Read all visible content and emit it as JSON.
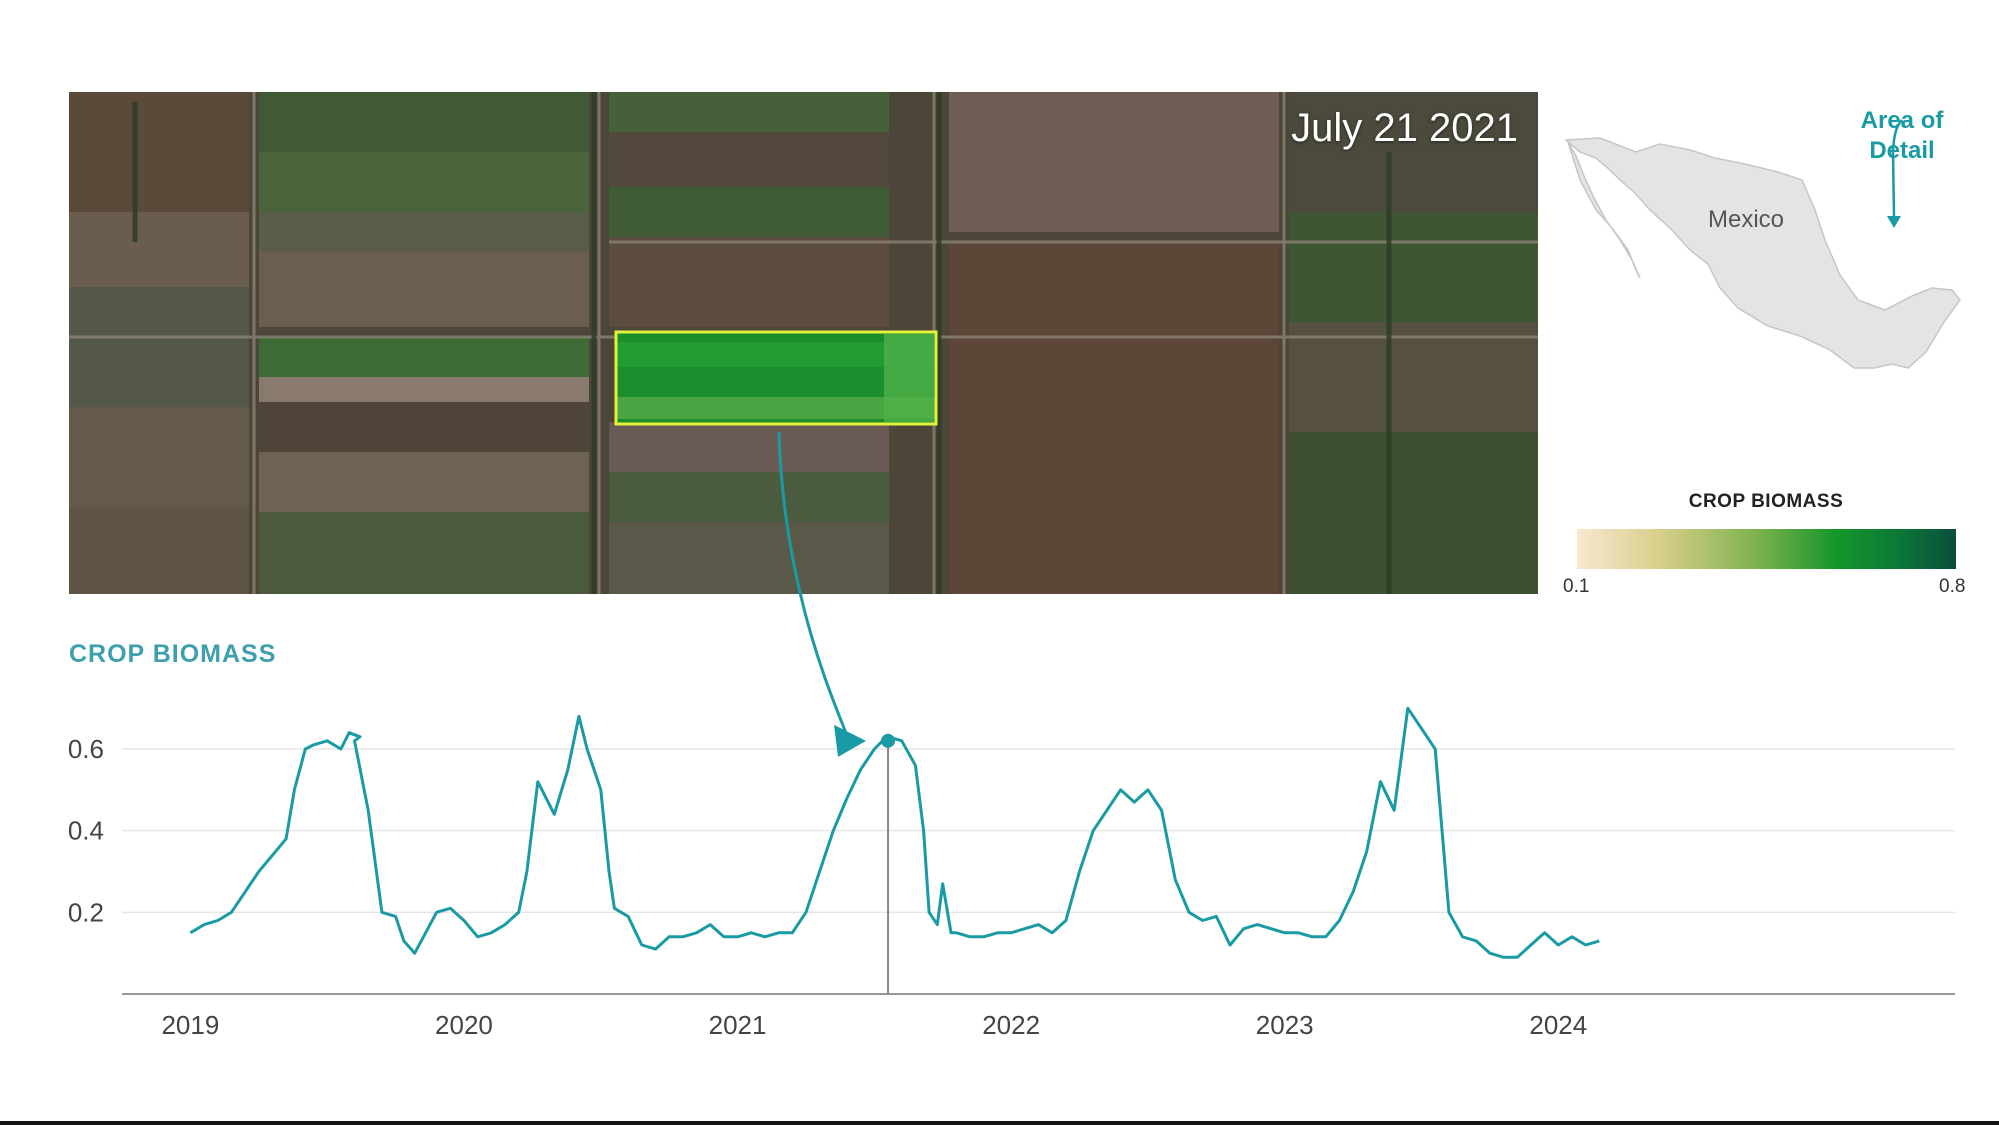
{
  "image_caption_date": "July 21 2021",
  "locator_map": {
    "country_label": "Mexico",
    "area_label_line1": "Area of",
    "area_label_line2": "Detail",
    "accent_color": "#1a9aa4"
  },
  "legend": {
    "title": "CROP BIOMASS",
    "min_label": "0.1",
    "max_label": "0.8",
    "colors": [
      "#f7e8d0",
      "#d8cf8a",
      "#7bb14e",
      "#16962a",
      "#0b7a36",
      "#0a4f3c"
    ]
  },
  "chart_data": {
    "type": "line",
    "title": "CROP BIOMASS",
    "xlabel": "",
    "ylabel": "",
    "xlim": [
      2018.75,
      2025.45
    ],
    "ylim": [
      0.0,
      0.72
    ],
    "xticks": [
      "2019",
      "2020",
      "2021",
      "2022",
      "2023",
      "2024"
    ],
    "yticks": [
      "0.2",
      "0.4",
      "0.6"
    ],
    "grid": true,
    "line_color": "#1a9aa4",
    "highlight": {
      "x": 2021.55,
      "y": 0.62,
      "label": "July 21 2021"
    },
    "series": [
      {
        "x": [
          2019.0,
          2019.05,
          2019.1,
          2019.15,
          2019.2,
          2019.25,
          2019.3,
          2019.35,
          2019.38,
          2019.42,
          2019.45,
          2019.5,
          2019.55,
          2019.58,
          2019.62,
          2019.6,
          2019.65,
          2019.7,
          2019.75,
          2019.78,
          2019.82,
          2019.9,
          2019.95,
          2020.0,
          2020.05,
          2020.1,
          2020.15,
          2020.2,
          2020.23,
          2020.27,
          2020.33,
          2020.38,
          2020.42,
          2020.45,
          2020.5,
          2020.53,
          2020.55,
          2020.6,
          2020.65,
          2020.7,
          2020.75,
          2020.8,
          2020.85,
          2020.9,
          2020.95,
          2021.0,
          2021.05,
          2021.1,
          2021.15,
          2021.2,
          2021.25,
          2021.3,
          2021.35,
          2021.4,
          2021.45,
          2021.5,
          2021.53,
          2021.55,
          2021.6,
          2021.65,
          2021.68,
          2021.7,
          2021.73,
          2021.75,
          2021.78,
          2021.8,
          2021.85,
          2021.9,
          2021.95,
          2022.0,
          2022.05,
          2022.1,
          2022.15,
          2022.2,
          2022.25,
          2022.3,
          2022.35,
          2022.4,
          2022.45,
          2022.5,
          2022.55,
          2022.6,
          2022.65,
          2022.7,
          2022.75,
          2022.8,
          2022.85,
          2022.9,
          2022.95,
          2023.0,
          2023.05,
          2023.1,
          2023.15,
          2023.2,
          2023.25,
          2023.3,
          2023.35,
          2023.4,
          2023.43,
          2023.45,
          2023.5,
          2023.55,
          2023.6,
          2023.65,
          2023.7,
          2023.75,
          2023.8,
          2023.85,
          2023.9,
          2023.95,
          2024.0,
          2024.05,
          2024.1,
          2024.15
        ],
        "y": [
          0.15,
          0.17,
          0.18,
          0.2,
          0.25,
          0.3,
          0.34,
          0.38,
          0.5,
          0.6,
          0.61,
          0.62,
          0.6,
          0.64,
          0.63,
          0.62,
          0.45,
          0.2,
          0.19,
          0.13,
          0.1,
          0.2,
          0.21,
          0.18,
          0.14,
          0.15,
          0.17,
          0.2,
          0.3,
          0.52,
          0.44,
          0.55,
          0.68,
          0.6,
          0.5,
          0.3,
          0.21,
          0.19,
          0.12,
          0.11,
          0.14,
          0.14,
          0.15,
          0.17,
          0.14,
          0.14,
          0.15,
          0.14,
          0.15,
          0.15,
          0.2,
          0.3,
          0.4,
          0.48,
          0.55,
          0.6,
          0.62,
          0.63,
          0.62,
          0.56,
          0.4,
          0.2,
          0.17,
          0.27,
          0.15,
          0.15,
          0.14,
          0.14,
          0.15,
          0.15,
          0.16,
          0.17,
          0.15,
          0.18,
          0.3,
          0.4,
          0.45,
          0.5,
          0.47,
          0.5,
          0.45,
          0.28,
          0.2,
          0.18,
          0.19,
          0.12,
          0.16,
          0.17,
          0.16,
          0.15,
          0.15,
          0.14,
          0.14,
          0.18,
          0.25,
          0.35,
          0.52,
          0.45,
          0.6,
          0.7,
          0.65,
          0.6,
          0.2,
          0.14,
          0.13,
          0.1,
          0.09,
          0.09,
          0.12,
          0.15,
          0.12,
          0.14,
          0.12,
          0.13
        ]
      }
    ]
  }
}
